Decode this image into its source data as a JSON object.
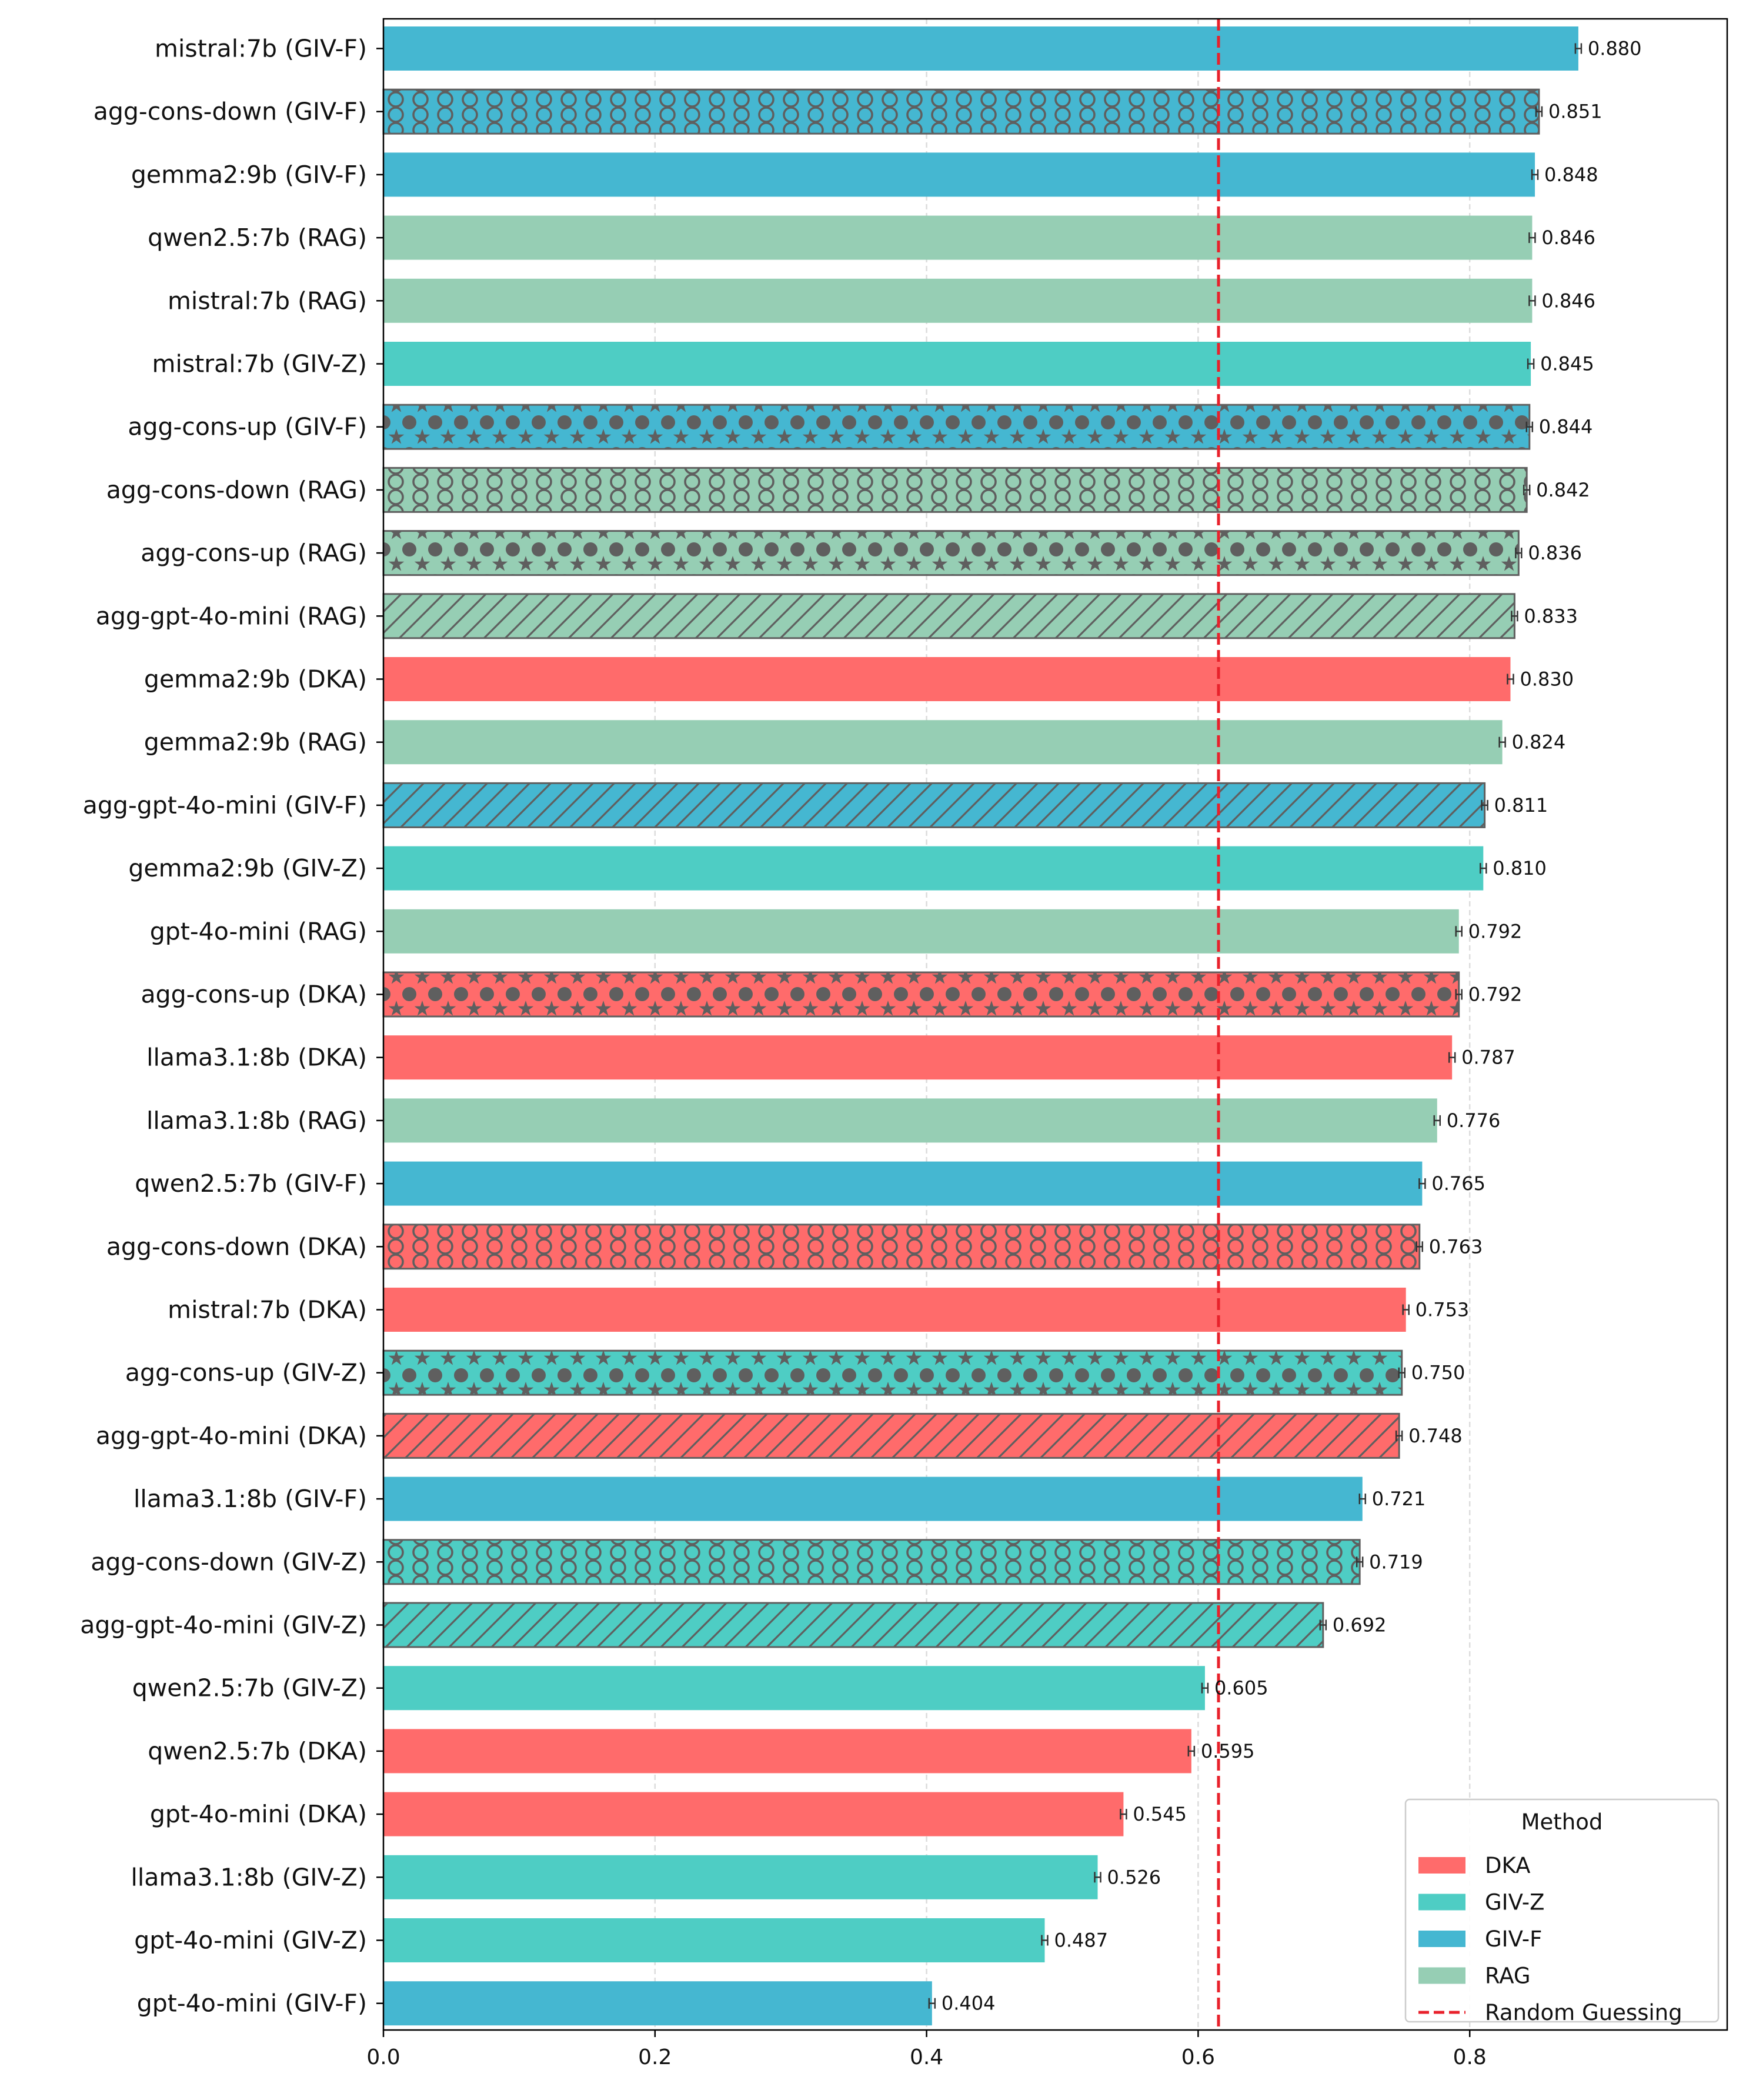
{
  "chart_data": {
    "type": "bar",
    "orientation": "horizontal",
    "xlim": [
      0.0,
      0.99
    ],
    "xticks": [
      "0.0",
      "0.2",
      "0.4",
      "0.6",
      "0.8"
    ],
    "grid": "x (dashed)",
    "legend_position": "bottom-right",
    "legend_title": "Method",
    "series_colors": {
      "DKA": "#ff6b6b",
      "GIV-Z": "#4ecdc4",
      "GIV-F": "#45b7d1",
      "RAG": "#96ceb4"
    },
    "reference_line": {
      "label": "Random Guessing",
      "value": 0.615,
      "color": "#e8212b",
      "style": "dashed"
    },
    "legend": [
      {
        "label": "DKA",
        "color": "#ff6b6b"
      },
      {
        "label": "GIV-Z",
        "color": "#4ecdc4"
      },
      {
        "label": "GIV-F",
        "color": "#45b7d1"
      },
      {
        "label": "RAG",
        "color": "#96ceb4"
      },
      {
        "label": "Random Guessing",
        "color": "#e8212b",
        "dashed": true
      }
    ],
    "bars": [
      {
        "label": "mistral:7b (GIV-F)",
        "value": 0.88,
        "value_label": "0.880",
        "method": "GIV-F",
        "pattern": "none"
      },
      {
        "label": "agg-cons-down (GIV-F)",
        "value": 0.851,
        "value_label": "0.851",
        "method": "GIV-F",
        "pattern": "circles"
      },
      {
        "label": "gemma2:9b (GIV-F)",
        "value": 0.848,
        "value_label": "0.848",
        "method": "GIV-F",
        "pattern": "none"
      },
      {
        "label": "qwen2.5:7b (RAG)",
        "value": 0.846,
        "value_label": "0.846",
        "method": "RAG",
        "pattern": "none"
      },
      {
        "label": "mistral:7b (RAG)",
        "value": 0.846,
        "value_label": "0.846",
        "method": "RAG",
        "pattern": "none"
      },
      {
        "label": "mistral:7b (GIV-Z)",
        "value": 0.845,
        "value_label": "0.845",
        "method": "GIV-Z",
        "pattern": "none"
      },
      {
        "label": "agg-cons-up (GIV-F)",
        "value": 0.844,
        "value_label": "0.844",
        "method": "GIV-F",
        "pattern": "stars"
      },
      {
        "label": "agg-cons-down (RAG)",
        "value": 0.842,
        "value_label": "0.842",
        "method": "RAG",
        "pattern": "circles"
      },
      {
        "label": "agg-cons-up (RAG)",
        "value": 0.836,
        "value_label": "0.836",
        "method": "RAG",
        "pattern": "stars"
      },
      {
        "label": "agg-gpt-4o-mini (RAG)",
        "value": 0.833,
        "value_label": "0.833",
        "method": "RAG",
        "pattern": "hatch"
      },
      {
        "label": "gemma2:9b (DKA)",
        "value": 0.83,
        "value_label": "0.830",
        "method": "DKA",
        "pattern": "none"
      },
      {
        "label": "gemma2:9b (RAG)",
        "value": 0.824,
        "value_label": "0.824",
        "method": "RAG",
        "pattern": "none"
      },
      {
        "label": "agg-gpt-4o-mini (GIV-F)",
        "value": 0.811,
        "value_label": "0.811",
        "method": "GIV-F",
        "pattern": "hatch"
      },
      {
        "label": "gemma2:9b (GIV-Z)",
        "value": 0.81,
        "value_label": "0.810",
        "method": "GIV-Z",
        "pattern": "none"
      },
      {
        "label": "gpt-4o-mini (RAG)",
        "value": 0.792,
        "value_label": "0.792",
        "method": "RAG",
        "pattern": "none"
      },
      {
        "label": "agg-cons-up (DKA)",
        "value": 0.792,
        "value_label": "0.792",
        "method": "DKA",
        "pattern": "stars"
      },
      {
        "label": "llama3.1:8b (DKA)",
        "value": 0.787,
        "value_label": "0.787",
        "method": "DKA",
        "pattern": "none"
      },
      {
        "label": "llama3.1:8b (RAG)",
        "value": 0.776,
        "value_label": "0.776",
        "method": "RAG",
        "pattern": "none"
      },
      {
        "label": "qwen2.5:7b (GIV-F)",
        "value": 0.765,
        "value_label": "0.765",
        "method": "GIV-F",
        "pattern": "none"
      },
      {
        "label": "agg-cons-down (DKA)",
        "value": 0.763,
        "value_label": "0.763",
        "method": "DKA",
        "pattern": "circles"
      },
      {
        "label": "mistral:7b (DKA)",
        "value": 0.753,
        "value_label": "0.753",
        "method": "DKA",
        "pattern": "none"
      },
      {
        "label": "agg-cons-up (GIV-Z)",
        "value": 0.75,
        "value_label": "0.750",
        "method": "GIV-Z",
        "pattern": "stars"
      },
      {
        "label": "agg-gpt-4o-mini (DKA)",
        "value": 0.748,
        "value_label": "0.748",
        "method": "DKA",
        "pattern": "hatch"
      },
      {
        "label": "llama3.1:8b (GIV-F)",
        "value": 0.721,
        "value_label": "0.721",
        "method": "GIV-F",
        "pattern": "none"
      },
      {
        "label": "agg-cons-down (GIV-Z)",
        "value": 0.719,
        "value_label": "0.719",
        "method": "GIV-Z",
        "pattern": "circles"
      },
      {
        "label": "agg-gpt-4o-mini (GIV-Z)",
        "value": 0.692,
        "value_label": "0.692",
        "method": "GIV-Z",
        "pattern": "hatch"
      },
      {
        "label": "qwen2.5:7b (GIV-Z)",
        "value": 0.605,
        "value_label": "0.605",
        "method": "GIV-Z",
        "pattern": "none"
      },
      {
        "label": "qwen2.5:7b (DKA)",
        "value": 0.595,
        "value_label": "0.595",
        "method": "DKA",
        "pattern": "none"
      },
      {
        "label": "gpt-4o-mini (DKA)",
        "value": 0.545,
        "value_label": "0.545",
        "method": "DKA",
        "pattern": "none"
      },
      {
        "label": "llama3.1:8b (GIV-Z)",
        "value": 0.526,
        "value_label": "0.526",
        "method": "GIV-Z",
        "pattern": "none"
      },
      {
        "label": "gpt-4o-mini (GIV-Z)",
        "value": 0.487,
        "value_label": "0.487",
        "method": "GIV-Z",
        "pattern": "none"
      },
      {
        "label": "gpt-4o-mini (GIV-F)",
        "value": 0.404,
        "value_label": "0.404",
        "method": "GIV-F",
        "pattern": "none"
      }
    ]
  }
}
